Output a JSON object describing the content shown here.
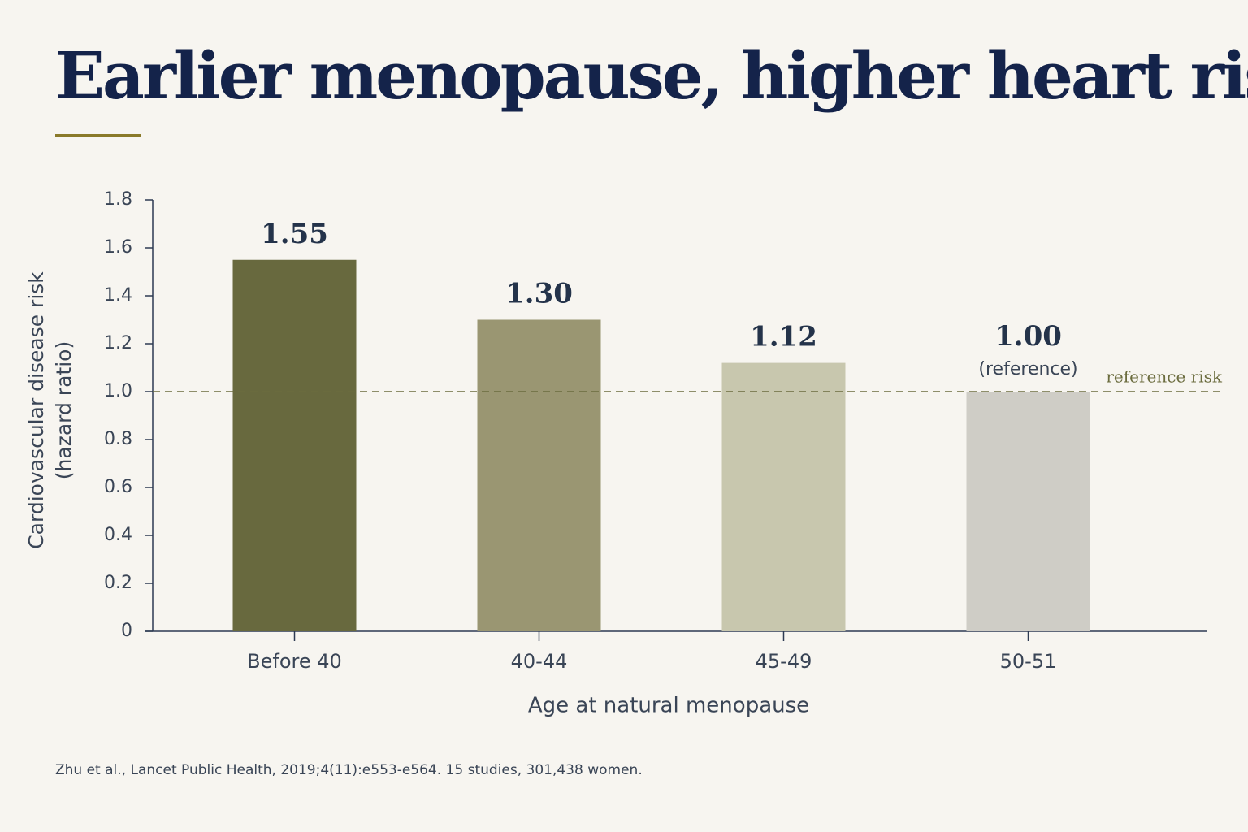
{
  "chart_data": {
    "type": "bar",
    "title": "Earlier menopause, higher heart risk",
    "categories": [
      "Before 40",
      "40-44",
      "45-49",
      "50-51"
    ],
    "values": [
      1.55,
      1.3,
      1.12,
      1
    ],
    "value_labels": [
      "1.55",
      "1.30",
      "1.12",
      "1.00"
    ],
    "value_notes": [
      null,
      null,
      null,
      "(reference)"
    ],
    "colors": [
      "#68693e",
      "#9a9672",
      "#c8c7ae",
      "#cfcdc6"
    ],
    "ylim": [
      0,
      1.8
    ],
    "yticks": [
      0,
      0.2,
      0.4,
      0.6,
      0.8,
      {
        "value": 1,
        "label": "1.0"
      },
      1.2,
      1.4,
      1.6,
      1.8
    ],
    "y_label": [
      "Cardiovascular disease risk",
      "(hazard ratio)"
    ],
    "x_label": "Age at natural menopause",
    "reference_line": {
      "value": 1,
      "label": "reference risk",
      "color": "#6b6c3e"
    },
    "grid": false,
    "source": "Zhu et al., Lancet Public Health, 2019;4(11):e553-e564. 15 studies, 301,438 women."
  }
}
